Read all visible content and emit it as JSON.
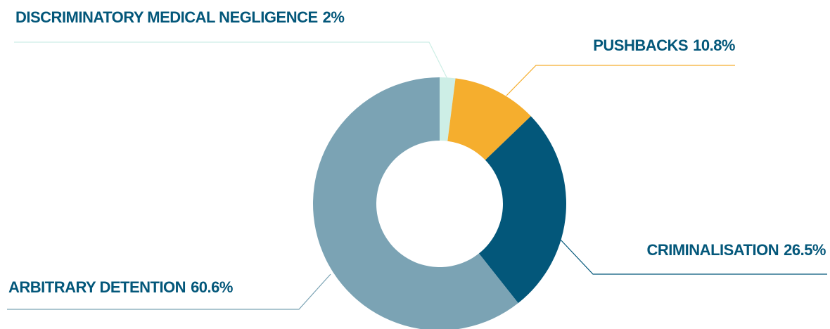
{
  "chart_data": {
    "type": "donut",
    "categories": [
      "DISCRIMINATORY MEDICAL NEGLIGENCE",
      "PUSHBACKS",
      "CRIMINALISATION",
      "ARBITRARY DETENTION"
    ],
    "values": [
      2,
      10.8,
      26.5,
      60.6
    ],
    "value_labels": [
      "2%",
      "10.8%",
      "26.5%",
      "60.6%"
    ],
    "colors": [
      "#cdeee6",
      "#f5ae2e",
      "#03577a",
      "#7ba3b4"
    ]
  }
}
